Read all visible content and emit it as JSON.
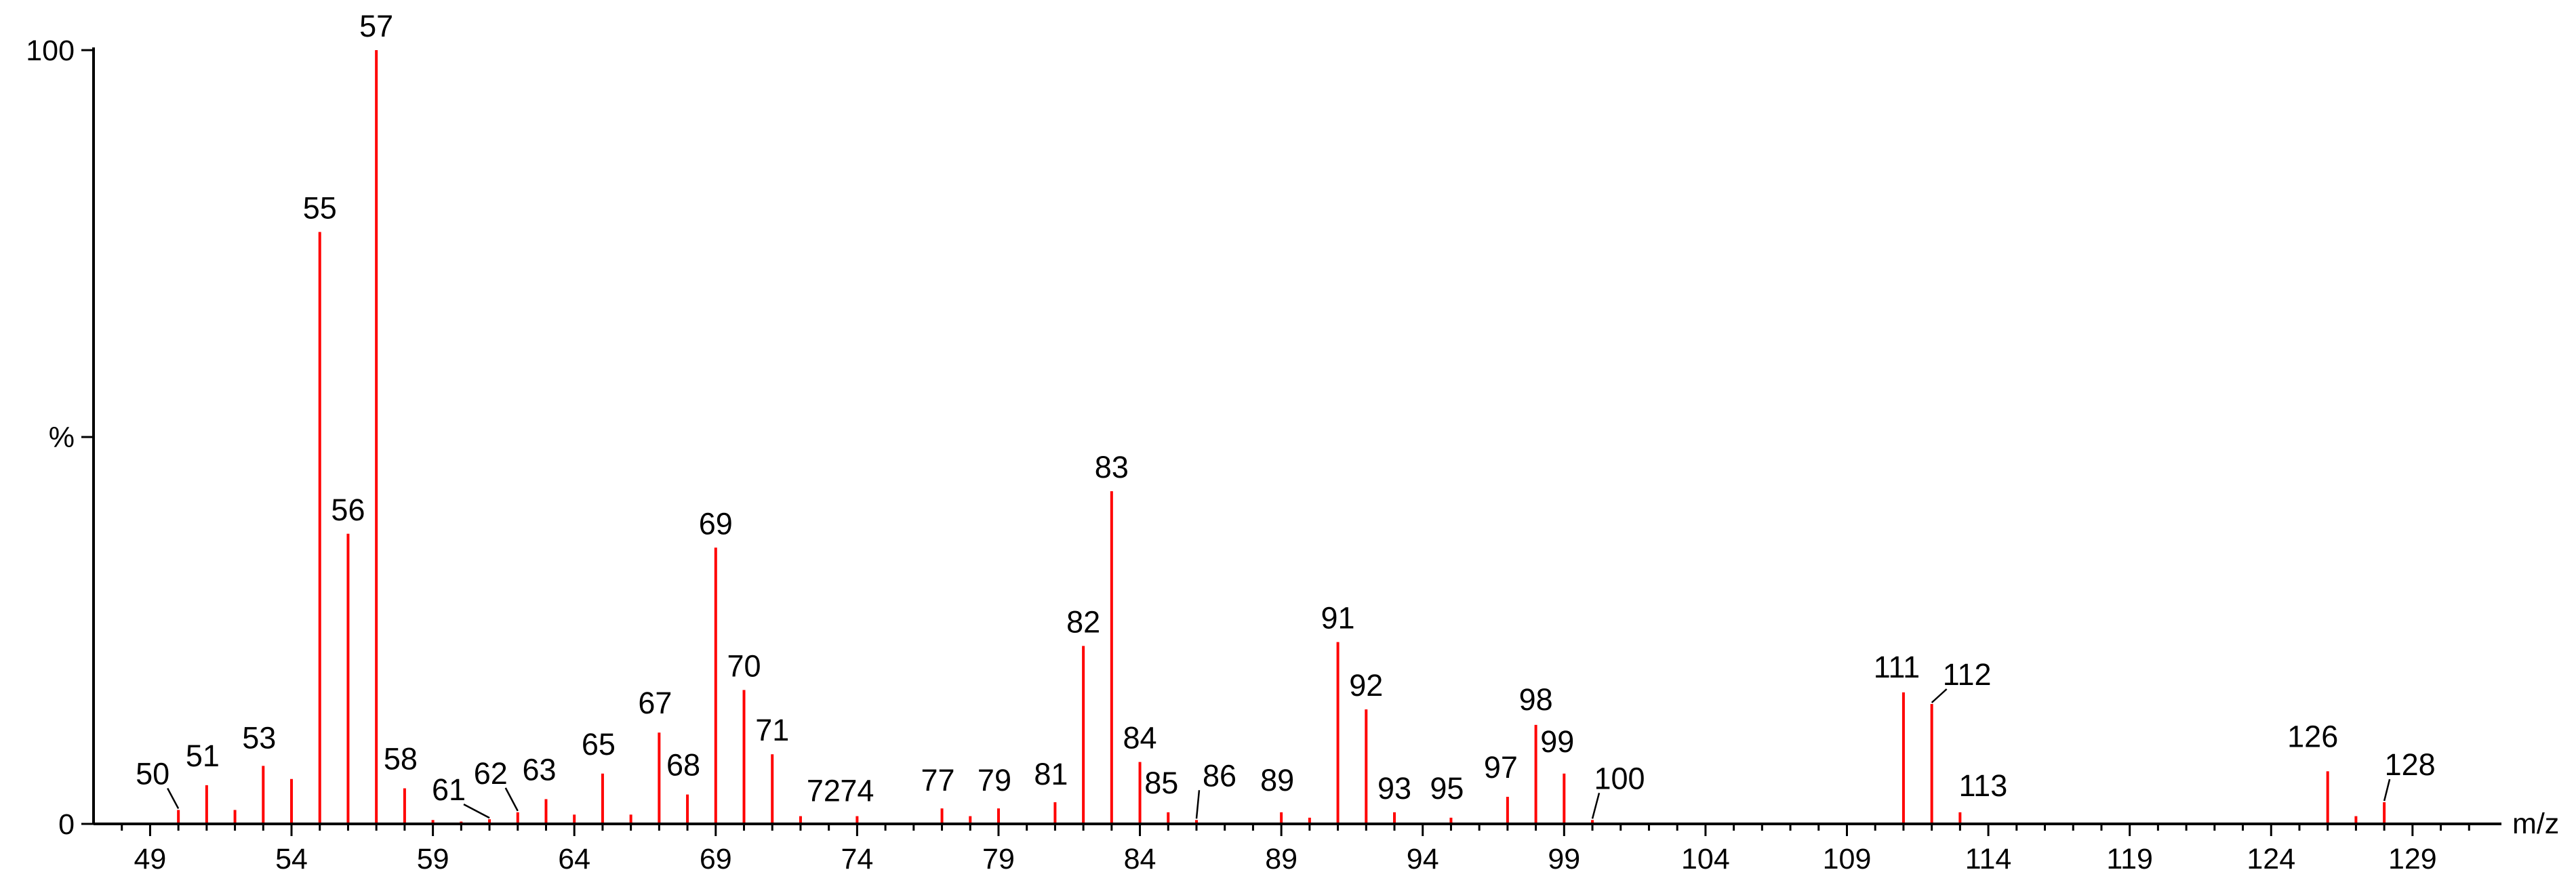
{
  "chart_data": {
    "type": "bar",
    "title": "",
    "xlabel": "m/z",
    "ylabel": "%",
    "xlim": [
      47,
      132
    ],
    "ylim": [
      0,
      100
    ],
    "y_tick_labels": [
      "0",
      "%",
      "100"
    ],
    "x_ticks": [
      49,
      54,
      59,
      64,
      69,
      74,
      79,
      84,
      89,
      94,
      99,
      104,
      109,
      114,
      119,
      124,
      129
    ],
    "x_tick_labels": [
      "49",
      "54",
      "59",
      "64",
      "69",
      "74",
      "79",
      "84",
      "89",
      "94",
      "99",
      "104",
      "109",
      "114",
      "119",
      "124",
      "129"
    ],
    "grid": false,
    "legend": "none",
    "peak_color": "#ff0000",
    "peaks": [
      {
        "mz": 50,
        "intensity": 1.8,
        "label": "50"
      },
      {
        "mz": 51,
        "intensity": 5.0,
        "label": "51"
      },
      {
        "mz": 52,
        "intensity": 1.8,
        "label": ""
      },
      {
        "mz": 53,
        "intensity": 7.5,
        "label": "53"
      },
      {
        "mz": 54,
        "intensity": 5.8,
        "label": ""
      },
      {
        "mz": 55,
        "intensity": 76.5,
        "label": "55"
      },
      {
        "mz": 56,
        "intensity": 37.5,
        "label": "56"
      },
      {
        "mz": 57,
        "intensity": 100,
        "label": "57"
      },
      {
        "mz": 58,
        "intensity": 4.6,
        "label": "58"
      },
      {
        "mz": 59,
        "intensity": 0.5,
        "label": ""
      },
      {
        "mz": 60,
        "intensity": 0.3,
        "label": ""
      },
      {
        "mz": 61,
        "intensity": 0.6,
        "label": "61"
      },
      {
        "mz": 62,
        "intensity": 1.5,
        "label": "62"
      },
      {
        "mz": 63,
        "intensity": 3.2,
        "label": "63"
      },
      {
        "mz": 64,
        "intensity": 1.2,
        "label": ""
      },
      {
        "mz": 65,
        "intensity": 6.5,
        "label": "65"
      },
      {
        "mz": 66,
        "intensity": 1.2,
        "label": ""
      },
      {
        "mz": 67,
        "intensity": 11.8,
        "label": "67"
      },
      {
        "mz": 68,
        "intensity": 3.8,
        "label": "68"
      },
      {
        "mz": 69,
        "intensity": 35.7,
        "label": "69"
      },
      {
        "mz": 70,
        "intensity": 17.3,
        "label": "70"
      },
      {
        "mz": 71,
        "intensity": 9.0,
        "label": "71"
      },
      {
        "mz": 72,
        "intensity": 1.0,
        "label": "72"
      },
      {
        "mz": 74,
        "intensity": 1.0,
        "label": "74"
      },
      {
        "mz": 77,
        "intensity": 2.0,
        "label": "77"
      },
      {
        "mz": 78,
        "intensity": 1.0,
        "label": ""
      },
      {
        "mz": 79,
        "intensity": 2.0,
        "label": "79"
      },
      {
        "mz": 81,
        "intensity": 2.8,
        "label": "81"
      },
      {
        "mz": 82,
        "intensity": 23.0,
        "label": "82"
      },
      {
        "mz": 83,
        "intensity": 43.0,
        "label": "83"
      },
      {
        "mz": 84,
        "intensity": 8.0,
        "label": "84"
      },
      {
        "mz": 85,
        "intensity": 1.5,
        "label": "85"
      },
      {
        "mz": 86,
        "intensity": 0.5,
        "label": "86"
      },
      {
        "mz": 89,
        "intensity": 1.5,
        "label": "89"
      },
      {
        "mz": 90,
        "intensity": 0.8,
        "label": ""
      },
      {
        "mz": 91,
        "intensity": 23.5,
        "label": "91"
      },
      {
        "mz": 92,
        "intensity": 14.8,
        "label": "92"
      },
      {
        "mz": 93,
        "intensity": 1.5,
        "label": "93"
      },
      {
        "mz": 95,
        "intensity": 0.8,
        "label": "95"
      },
      {
        "mz": 97,
        "intensity": 3.5,
        "label": "97"
      },
      {
        "mz": 98,
        "intensity": 12.8,
        "label": "98"
      },
      {
        "mz": 99,
        "intensity": 6.5,
        "label": "99"
      },
      {
        "mz": 100,
        "intensity": 0.5,
        "label": "100"
      },
      {
        "mz": 111,
        "intensity": 17.0,
        "label": "111"
      },
      {
        "mz": 112,
        "intensity": 15.5,
        "label": "112"
      },
      {
        "mz": 113,
        "intensity": 1.5,
        "label": "113"
      },
      {
        "mz": 126,
        "intensity": 6.8,
        "label": "126"
      },
      {
        "mz": 127,
        "intensity": 1.0,
        "label": ""
      },
      {
        "mz": 128,
        "intensity": 2.8,
        "label": "128"
      }
    ]
  }
}
